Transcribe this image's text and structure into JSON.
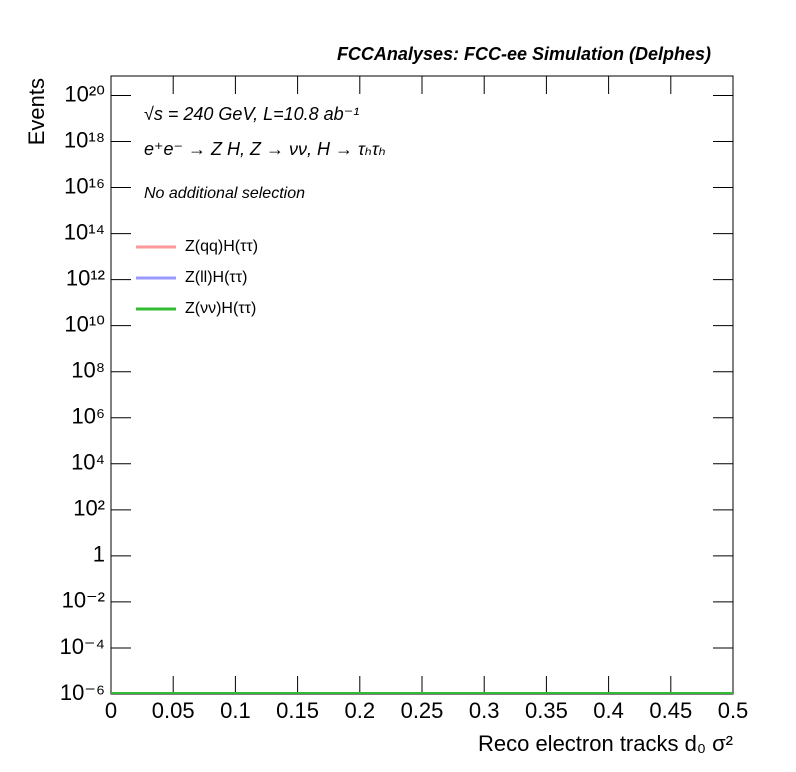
{
  "chart_data": {
    "type": "histogram",
    "title": "FCCAnalyses: FCC-ee Simulation (Delphes)",
    "annotations": [
      "√s = 240 GeV, L=10.8 ab⁻¹",
      "e⁺e⁻ → Z H, Z → νν, H → τₕτₕ",
      "No additional selection"
    ],
    "x_label": "Reco electron tracks d₀ σ²",
    "y_label": "Events",
    "xlim": [
      0,
      0.5
    ],
    "xticks": [
      0,
      0.05,
      0.1,
      0.15,
      0.2,
      0.25,
      0.3,
      0.35,
      0.4,
      0.45,
      0.5
    ],
    "ylim": [
      1e-06,
      7e+20
    ],
    "log_y": true,
    "yticks": [
      {
        "value": 1e-06,
        "label": "10⁻⁶"
      },
      {
        "value": 0.0001,
        "label": "10⁻⁴"
      },
      {
        "value": 0.01,
        "label": "10⁻²"
      },
      1,
      {
        "value": 100,
        "label": "10²"
      },
      {
        "value": 10000.0,
        "label": "10⁴"
      },
      {
        "value": 1000000.0,
        "label": "10⁶"
      },
      {
        "value": 100000000.0,
        "label": "10⁸"
      },
      {
        "value": 10000000000.0,
        "label": "10¹⁰"
      },
      {
        "value": 1000000000000.0,
        "label": "10¹²"
      },
      {
        "value": 100000000000000.0,
        "label": "10¹⁴"
      },
      {
        "value": 1e+16,
        "label": "10¹⁶"
      },
      {
        "value": 1e+18,
        "label": "10¹⁸"
      },
      {
        "value": 1e+20,
        "label": "10²⁰"
      }
    ],
    "legend": "upper left",
    "series": [
      {
        "name": "Z(qq)H(ττ)",
        "color": "#ff9999"
      },
      {
        "name": "Z(ll)H(ττ)",
        "color": "#9999ff"
      },
      {
        "name": "Z(νν)H(ττ)",
        "color": "#33bb33"
      }
    ]
  }
}
